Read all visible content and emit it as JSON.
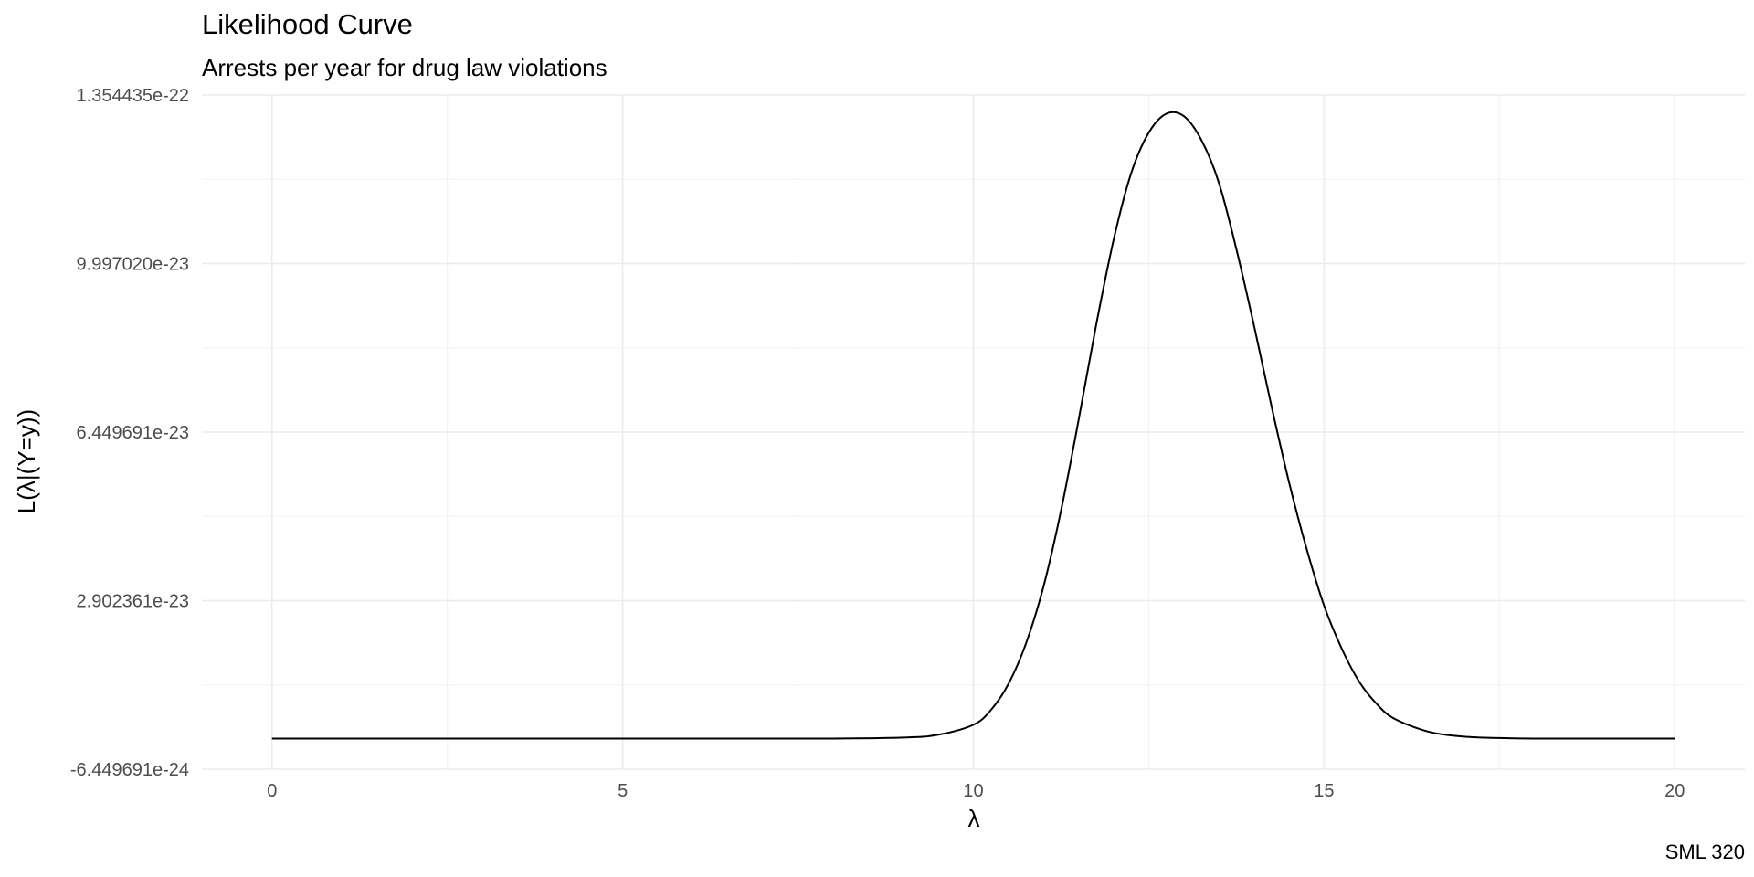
{
  "chart_data": {
    "type": "line",
    "title": "Likelihood Curve",
    "subtitle": "Arrests per year for drug law violations",
    "caption": "SML 320",
    "xlabel": "λ",
    "ylabel": "L(λ|(Y=y))",
    "xlim": [
      -1,
      21
    ],
    "ylim": [
      -6.449691e-24,
      1.354435e-22
    ],
    "x_ticks": [
      0,
      5,
      10,
      15,
      20
    ],
    "x_tick_labels": [
      "0",
      "5",
      "10",
      "15",
      "20"
    ],
    "y_ticks": [
      -6.449691e-24,
      2.902361e-23,
      6.449691e-23,
      9.99702e-23,
      1.354435e-22
    ],
    "y_tick_labels": [
      "-6.449691e-24",
      "2.902361e-23",
      "6.449691e-23",
      "9.997020e-23",
      "1.354435e-22"
    ],
    "grid": true,
    "line_color": "#000000",
    "series": [
      {
        "x": [
          0,
          5,
          8,
          9,
          9.5,
          10,
          10.25,
          10.5,
          10.75,
          11,
          11.25,
          11.5,
          11.75,
          12,
          12.25,
          12.5,
          12.75,
          13,
          13.25,
          13.5,
          13.75,
          14,
          14.25,
          14.5,
          14.75,
          15,
          15.25,
          15.5,
          15.75,
          16,
          16.5,
          17,
          17.5,
          18,
          19,
          20
        ],
        "y": [
          0,
          0,
          0,
          2e-25,
          8e-25,
          2.9e-24,
          6e-24,
          1.15e-23,
          2e-23,
          3.2e-23,
          4.8e-23,
          6.7e-23,
          8.7e-23,
          1.05e-22,
          1.19e-22,
          1.275e-22,
          1.315e-22,
          1.31e-22,
          1.26e-22,
          1.17e-22,
          1.03e-22,
          8.7e-23,
          7e-23,
          5.4e-23,
          4e-23,
          2.8e-23,
          1.9e-23,
          1.2e-23,
          7.3e-24,
          4.2e-24,
          1.4e-24,
          4e-25,
          1e-25,
          0,
          0,
          0
        ]
      }
    ]
  }
}
